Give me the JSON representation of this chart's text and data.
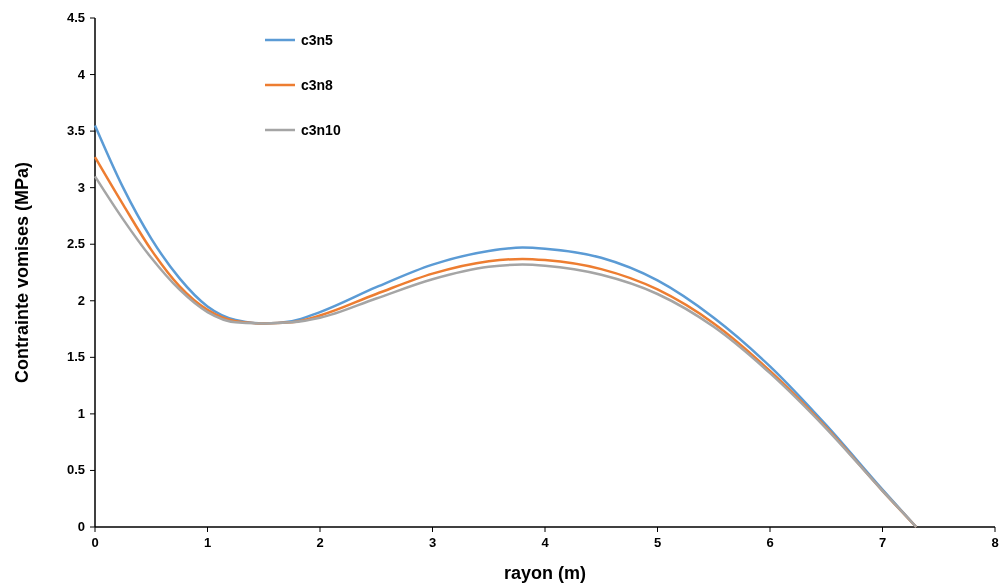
{
  "chart_data": {
    "type": "line",
    "xlabel": "rayon (m)",
    "ylabel": "Contrainte vomises (MPa)",
    "x": [
      0,
      0.25,
      0.5,
      0.75,
      1,
      1.25,
      1.5,
      1.75,
      2,
      2.5,
      3,
      3.5,
      3.8,
      4,
      4.5,
      5,
      5.5,
      6,
      6.5,
      7,
      7.3
    ],
    "series": [
      {
        "name": "c3n5",
        "color": "#5b9bd5",
        "values": [
          3.55,
          3.0,
          2.55,
          2.2,
          1.95,
          1.83,
          1.8,
          1.82,
          1.9,
          2.12,
          2.32,
          2.44,
          2.47,
          2.46,
          2.38,
          2.18,
          1.85,
          1.42,
          0.9,
          0.33,
          0
        ]
      },
      {
        "name": "c3n8",
        "color": "#ed7d31",
        "values": [
          3.27,
          2.85,
          2.45,
          2.13,
          1.92,
          1.82,
          1.8,
          1.81,
          1.87,
          2.06,
          2.24,
          2.35,
          2.37,
          2.36,
          2.28,
          2.1,
          1.8,
          1.38,
          0.88,
          0.32,
          0
        ]
      },
      {
        "name": "c3n10",
        "color": "#a5a5a5",
        "values": [
          3.1,
          2.72,
          2.38,
          2.1,
          1.9,
          1.81,
          1.8,
          1.81,
          1.85,
          2.02,
          2.19,
          2.3,
          2.32,
          2.31,
          2.23,
          2.06,
          1.77,
          1.36,
          0.87,
          0.32,
          0
        ]
      }
    ],
    "xlim": [
      0,
      8
    ],
    "xticks": [
      0,
      1,
      2,
      3,
      4,
      5,
      6,
      7,
      8
    ],
    "ylim": [
      0,
      4.5
    ],
    "yticks": [
      0,
      0.5,
      1,
      1.5,
      2,
      2.5,
      3,
      3.5,
      4,
      4.5
    ],
    "grid": false,
    "legend": "top left",
    "marker": "none",
    "line_style": "solid"
  }
}
